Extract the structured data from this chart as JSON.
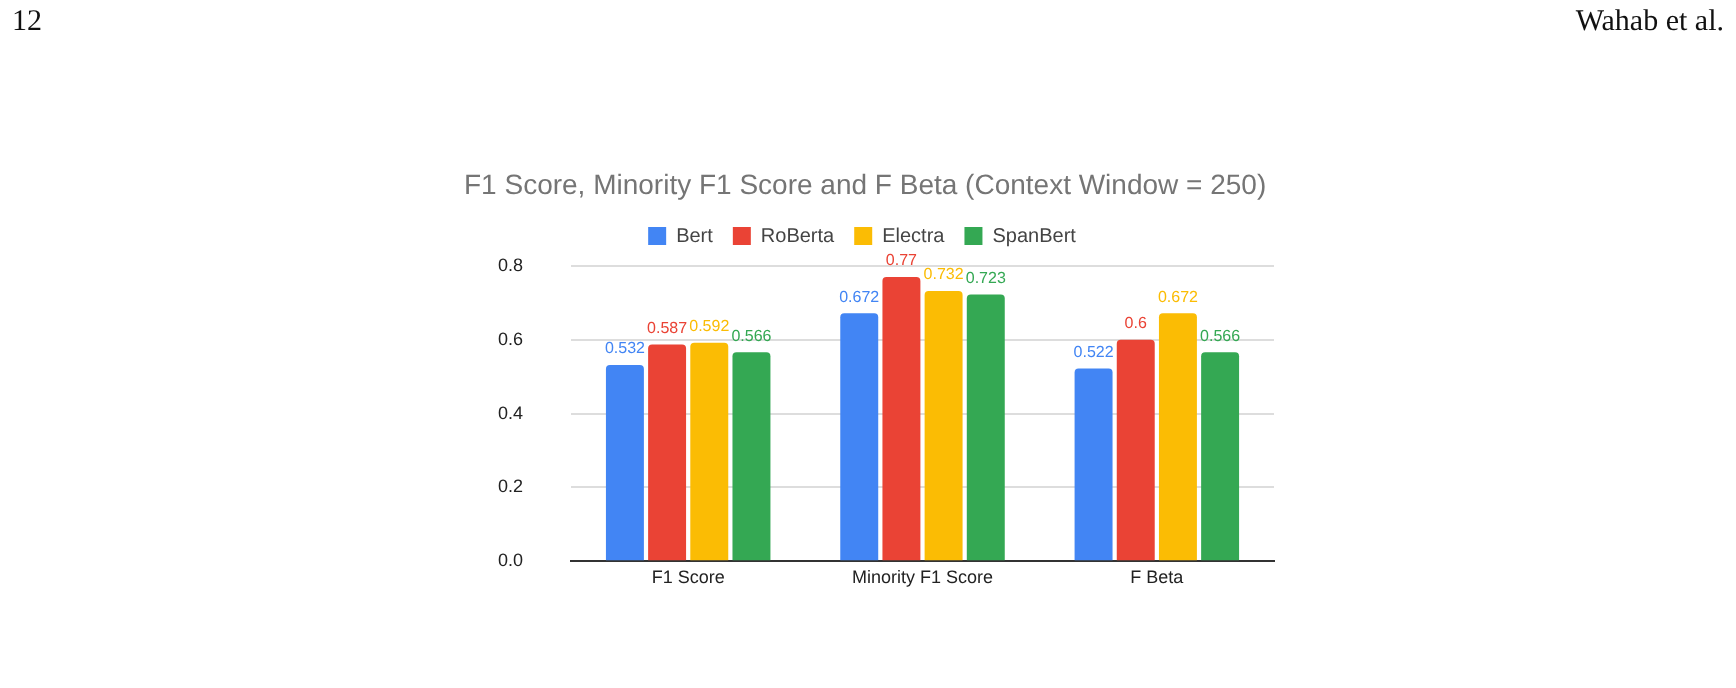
{
  "chart_data": {
    "type": "bar",
    "title": "F1 Score, Minority F1 Score and F Beta (Context Window = 250)",
    "categories": [
      "F1 Score",
      "Minority F1 Score",
      "F Beta"
    ],
    "series": [
      {
        "name": "Bert",
        "color": "#4285f4",
        "values": [
          0.532,
          0.672,
          0.522
        ]
      },
      {
        "name": "RoBerta",
        "color": "#ea4335",
        "values": [
          0.587,
          0.77,
          0.6
        ]
      },
      {
        "name": "Electra",
        "color": "#fbbc04",
        "values": [
          0.592,
          0.732,
          0.672
        ]
      },
      {
        "name": "SpanBert",
        "color": "#34a853",
        "values": [
          0.566,
          0.723,
          0.566
        ]
      }
    ],
    "ylim": [
      0,
      0.8
    ],
    "yticks": [
      {
        "value": 0,
        "label": "0.0"
      },
      0.2,
      0.4,
      0.6,
      0.8
    ],
    "grid": "y",
    "legend": "top",
    "data_labels": true,
    "annotations": [
      "12",
      "Wahab et al."
    ]
  }
}
